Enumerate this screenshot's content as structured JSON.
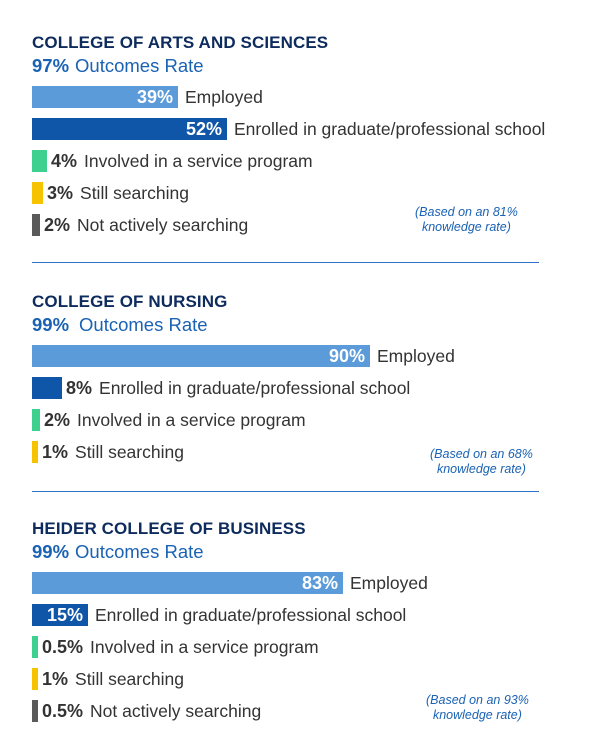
{
  "colors": {
    "employed": "#5b9bd9",
    "graduate": "#0f55a8",
    "service": "#3dd08f",
    "searching": "#f5c300",
    "not_searching": "#5a5a5a"
  },
  "chart_data": [
    {
      "type": "bar",
      "title": "COLLEGE OF ARTS AND SCIENCES",
      "outcomes_rate": {
        "pct": "97%",
        "label": "Outcomes Rate"
      },
      "note": [
        "(Based on an 81%",
        "knowledge rate)"
      ],
      "categories": [
        "Employed",
        "Enrolled in graduate/professional school",
        "Involved in a service program",
        "Still searching",
        "Not actively searching"
      ],
      "values": [
        39,
        52,
        4,
        3,
        2
      ],
      "value_labels": [
        "39%",
        "52%",
        "4%",
        "3%",
        "2%"
      ],
      "series_keys": [
        "employed",
        "graduate",
        "service",
        "searching",
        "not_searching"
      ],
      "label_inside": [
        true,
        true,
        false,
        false,
        false
      ]
    },
    {
      "type": "bar",
      "title": "COLLEGE OF NURSING",
      "outcomes_rate": {
        "pct": "99%",
        "label": "Outcomes Rate"
      },
      "note": [
        "(Based on an 68%",
        "knowledge rate)"
      ],
      "categories": [
        "Employed",
        "Enrolled in graduate/professional school",
        "Involved in a service program",
        "Still searching"
      ],
      "values": [
        90,
        8,
        2,
        1
      ],
      "value_labels": [
        "90%",
        "8%",
        "2%",
        "1%"
      ],
      "series_keys": [
        "employed",
        "graduate",
        "service",
        "searching"
      ],
      "label_inside": [
        true,
        false,
        false,
        false
      ]
    },
    {
      "type": "bar",
      "title": "HEIDER COLLEGE OF BUSINESS",
      "outcomes_rate": {
        "pct": "99%",
        "label": "Outcomes Rate"
      },
      "note": [
        "(Based on an 93%",
        "knowledge rate)"
      ],
      "categories": [
        "Employed",
        "Enrolled in graduate/professional school",
        "Involved in a service program",
        "Still searching",
        "Not actively searching"
      ],
      "values": [
        83,
        15,
        0.5,
        1,
        0.5
      ],
      "value_labels": [
        "83%",
        "15%",
        "0.5%",
        "1%",
        "0.5%"
      ],
      "series_keys": [
        "employed",
        "graduate",
        "service",
        "searching",
        "not_searching"
      ],
      "label_inside": [
        true,
        true,
        false,
        false,
        false
      ]
    }
  ]
}
